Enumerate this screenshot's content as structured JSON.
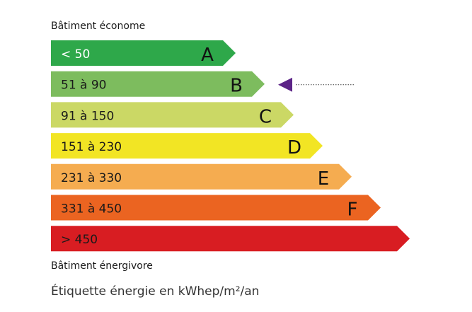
{
  "chart_data": {
    "type": "bar",
    "title": "Bâtiment économe",
    "footer_label": "Bâtiment énergivore",
    "caption": "Étiquette énergie en kWhep/m²/an",
    "categories": [
      {
        "range": "< 50",
        "letter": "A",
        "color": "#2ea84a",
        "text_color": "#ffffff"
      },
      {
        "range": "51 à 90",
        "letter": "B",
        "color": "#7dbc5e",
        "text_color": "#1a1a1a"
      },
      {
        "range": "91 à 150",
        "letter": "C",
        "color": "#cbd865",
        "text_color": "#1a1a1a"
      },
      {
        "range": "151 à 230",
        "letter": "D",
        "color": "#f2e524",
        "text_color": "#1a1a1a"
      },
      {
        "range": "231 à 330",
        "letter": "E",
        "color": "#f5ac50",
        "text_color": "#1a1a1a"
      },
      {
        "range": "331 à 450",
        "letter": "F",
        "color": "#eb6421",
        "text_color": "#1a1a1a"
      },
      {
        "range": "> 450",
        "letter": "",
        "color": "#d81d22",
        "text_color": "#1a1a1a"
      }
    ],
    "indicator": {
      "category": "B",
      "color": "#5c2487",
      "value_redacted": true
    }
  }
}
